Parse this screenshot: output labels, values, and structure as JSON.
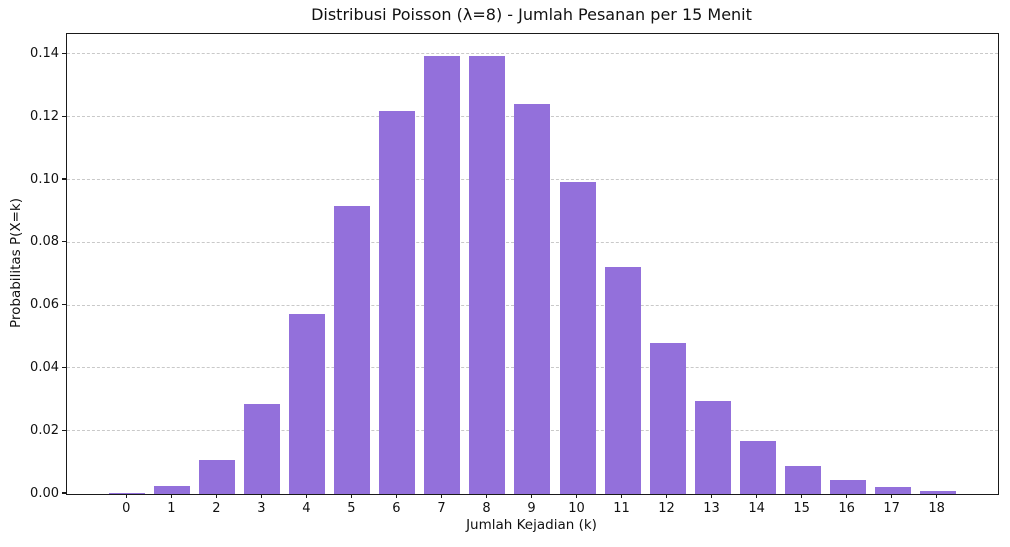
{
  "chart_data": {
    "type": "bar",
    "title": "Distribusi Poisson (λ=8) - Jumlah Pesanan per 15 Menit",
    "xlabel": "Jumlah Kejadian (k)",
    "ylabel": "Probabilitas P(X=k)",
    "categories": [
      "0",
      "1",
      "2",
      "3",
      "4",
      "5",
      "6",
      "7",
      "8",
      "9",
      "10",
      "11",
      "12",
      "13",
      "14",
      "15",
      "16",
      "17",
      "18"
    ],
    "values": [
      0.000335,
      0.002684,
      0.010735,
      0.028626,
      0.057252,
      0.091604,
      0.122138,
      0.139587,
      0.139587,
      0.124077,
      0.099262,
      0.07219,
      0.048127,
      0.029616,
      0.016924,
      0.009026,
      0.004513,
      0.002124,
      0.000944
    ],
    "yticks": [
      0.0,
      0.02,
      0.04,
      0.06,
      0.08,
      0.1,
      0.12,
      0.14
    ],
    "ytick_labels": [
      "0.00",
      "0.02",
      "0.04",
      "0.06",
      "0.08",
      "0.10",
      "0.12",
      "0.14"
    ],
    "ylim": [
      0,
      0.1465
    ],
    "xlim": [
      -1.34,
      19.34
    ],
    "bar_width_units": 0.8,
    "bar_color": "#9370DB",
    "grid": "horizontal-dashed",
    "grid_color": "#c9c9c9",
    "legend": "none",
    "lambda": 8
  }
}
